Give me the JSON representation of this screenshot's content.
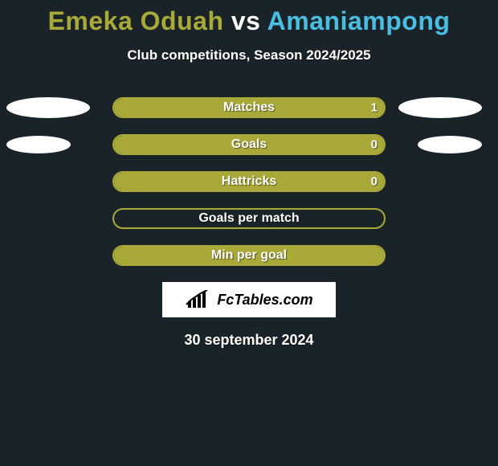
{
  "title": {
    "left_name": "Emeka Oduah",
    "mid": "vs",
    "right_name": "Amaniampong",
    "left_color": "#a9a93a",
    "right_color": "#4bbde0"
  },
  "subtitle": "Club competitions, Season 2024/2025",
  "ellipse_size": {
    "w": 104,
    "h": 26,
    "small_w": 80,
    "small_h": 22
  },
  "bar": {
    "outer_width": 340,
    "outer_height": 26,
    "border_color": "#a9a93a",
    "left_fill_color": "#a9a93a",
    "right_fill_color": "#4bbde0"
  },
  "rows": [
    {
      "label": "Matches",
      "left_val": "",
      "right_val": "1",
      "left_fill_pct": 100,
      "right_fill_pct": 0,
      "show_left_ellipse": true,
      "show_right_ellipse": true,
      "ellipse_large": true
    },
    {
      "label": "Goals",
      "left_val": "",
      "right_val": "0",
      "left_fill_pct": 100,
      "right_fill_pct": 0,
      "show_left_ellipse": true,
      "show_right_ellipse": true,
      "ellipse_large": false
    },
    {
      "label": "Hattricks",
      "left_val": "",
      "right_val": "0",
      "left_fill_pct": 100,
      "right_fill_pct": 0,
      "show_left_ellipse": false,
      "show_right_ellipse": false,
      "ellipse_large": false
    },
    {
      "label": "Goals per match",
      "left_val": "",
      "right_val": "",
      "left_fill_pct": 0,
      "right_fill_pct": 0,
      "show_left_ellipse": false,
      "show_right_ellipse": false,
      "ellipse_large": false
    },
    {
      "label": "Min per goal",
      "left_val": "",
      "right_val": "",
      "left_fill_pct": 100,
      "right_fill_pct": 0,
      "show_left_ellipse": false,
      "show_right_ellipse": false,
      "ellipse_large": false
    }
  ],
  "logo": {
    "text": "FcTables.com"
  },
  "date": "30 september 2024",
  "colors": {
    "background": "#1a2428",
    "text": "#ffffff",
    "ellipse": "#ffffff"
  }
}
